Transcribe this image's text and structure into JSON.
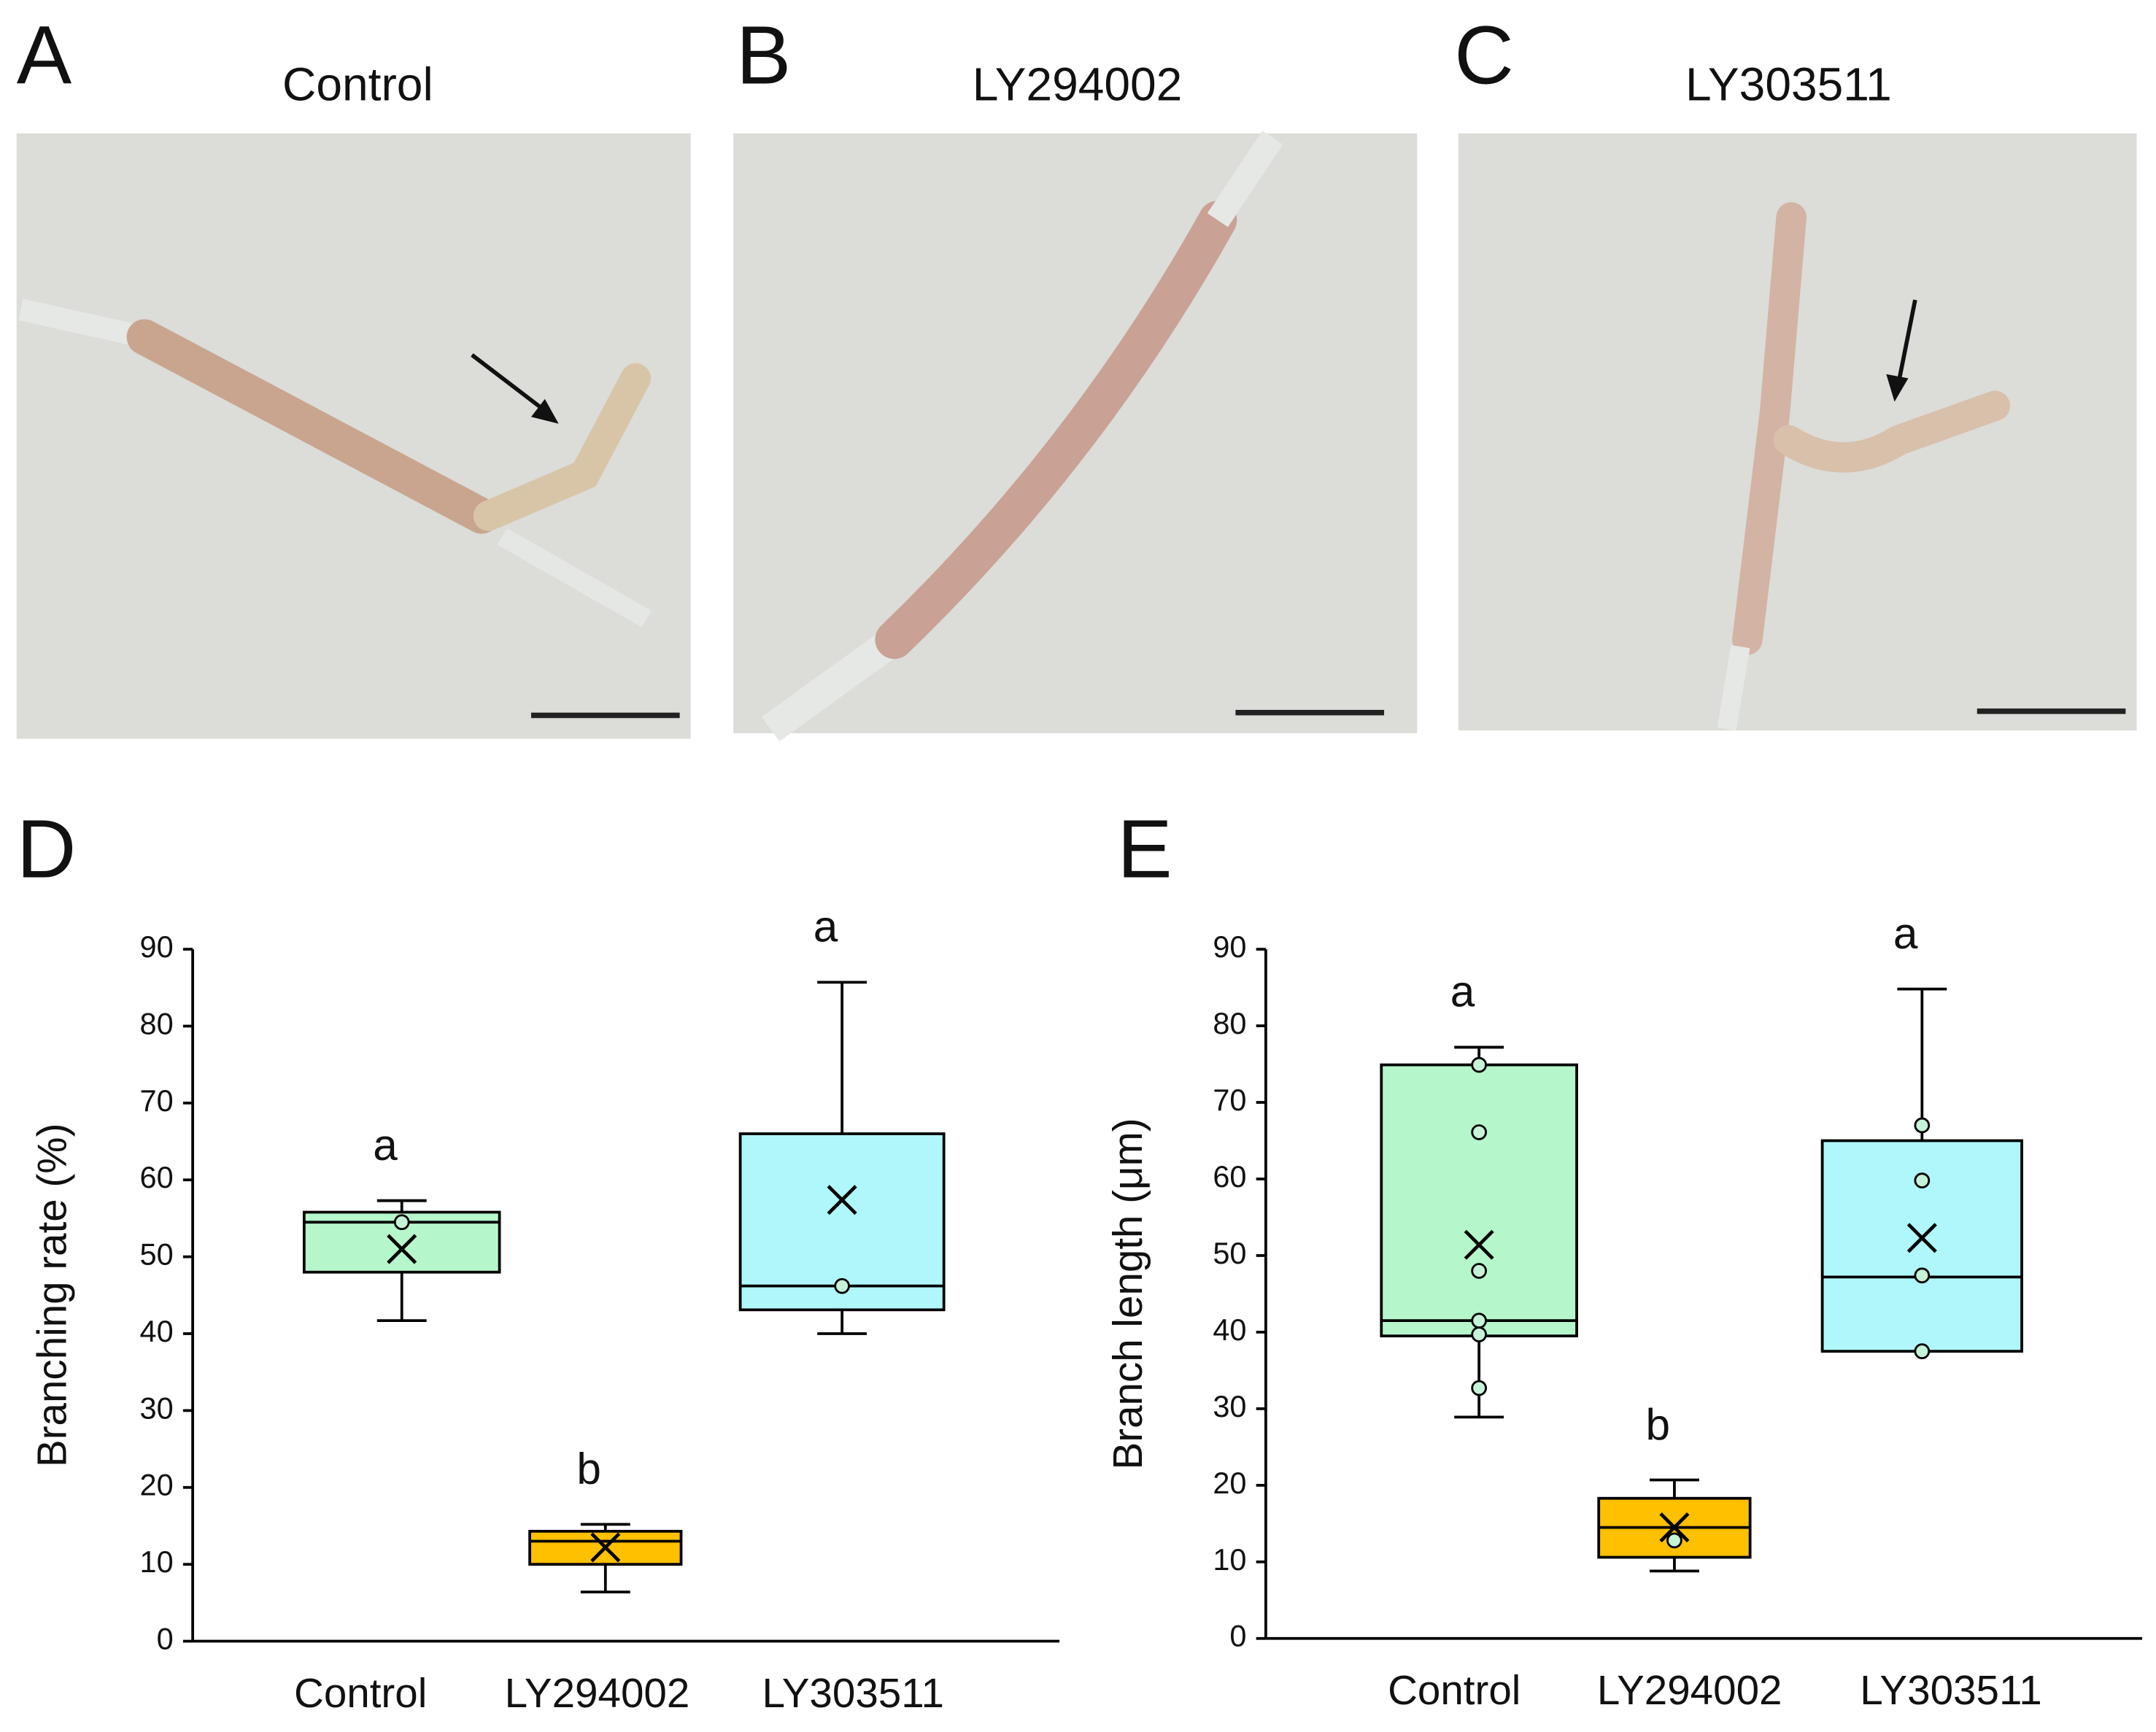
{
  "panels": [
    {
      "label": "A",
      "title": "Control"
    },
    {
      "label": "B",
      "title": "LY294002"
    },
    {
      "label": "C",
      "title": "LY303511"
    }
  ],
  "chart_data": [
    {
      "type": "box",
      "panel_label": "D",
      "y_label": "Branching rate (%)",
      "categories": [
        "Control",
        "LY294002",
        "LY303511"
      ],
      "colors": [
        "#b6f6cb",
        "#ffc000",
        "#b0f7fb"
      ],
      "letters": [
        "a",
        "b",
        "a"
      ],
      "boxes": [
        {
          "min": 41.7,
          "q1": 48,
          "median": 54.5,
          "q3": 55.8,
          "max": 57.3,
          "mean": 51,
          "points": [
            54.5
          ]
        },
        {
          "min": 6.4,
          "q1": 10,
          "median": 13,
          "q3": 14.3,
          "max": 15.2,
          "mean": 12.2,
          "points": []
        },
        {
          "min": 40,
          "q1": 43.1,
          "median": 46.2,
          "q3": 66,
          "max": 85.7,
          "mean": 57.4,
          "points": [
            46.2
          ]
        }
      ],
      "ylim": [
        0,
        90
      ],
      "yticks": [
        0,
        10,
        20,
        30,
        40,
        50,
        60,
        70,
        80,
        90
      ]
    },
    {
      "type": "box",
      "panel_label": "E",
      "y_label": "Branch length (μm)",
      "categories": [
        "Control",
        "LY294002",
        "LY303511"
      ],
      "colors": [
        "#b6f6cb",
        "#ffc000",
        "#b0f7fb"
      ],
      "letters": [
        "a",
        "b",
        "a"
      ],
      "boxes": [
        {
          "min": 28.9,
          "q1": 39.5,
          "median": 41.5,
          "q3": 74.9,
          "max": 77.2,
          "mean": 51.4,
          "points": [
            74.9,
            66.1,
            48,
            41.5,
            39.7,
            32.7
          ]
        },
        {
          "min": 8.8,
          "q1": 10.6,
          "median": 14.5,
          "q3": 18.3,
          "max": 20.7,
          "mean": 14.5,
          "points": [
            12.8
          ]
        },
        {
          "min": 37.5,
          "q1": 37.5,
          "median": 47.2,
          "q3": 65,
          "max": 84.8,
          "mean": 52.3,
          "points": [
            67,
            59.8,
            47.4,
            37.5
          ]
        }
      ],
      "ylim": [
        0,
        90
      ],
      "yticks": [
        0,
        10,
        20,
        30,
        40,
        50,
        60,
        70,
        80,
        90
      ]
    }
  ]
}
